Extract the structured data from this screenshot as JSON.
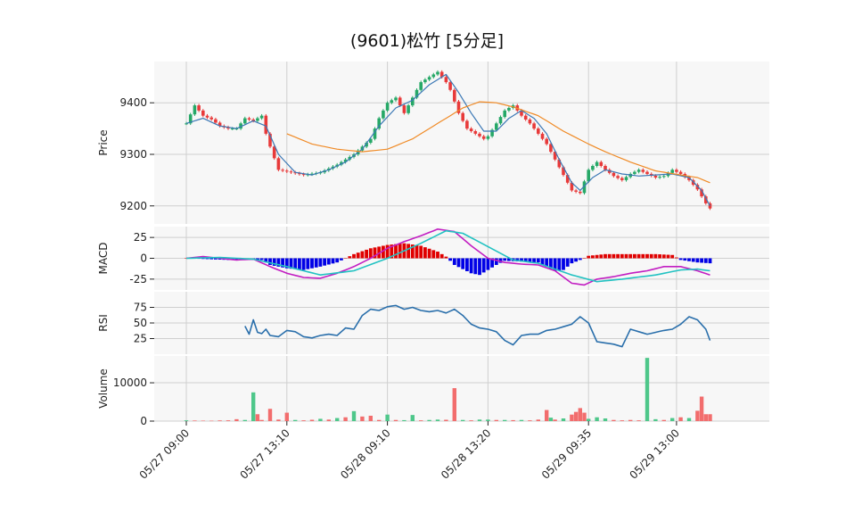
{
  "chart_data": {
    "type": "candlestick",
    "title": "(9601)松竹  [5分足]",
    "x_tick_labels": [
      "05/27  09:00",
      "05/27  13:10",
      "05/28  09:10",
      "05/28  13:20",
      "05/29  09:35",
      "05/29  13:00"
    ],
    "colors": {
      "up": "#26a867",
      "down": "#e83a3a",
      "volume_up": "#4ec78a",
      "volume_down": "#f26d6d",
      "ma_short": "#3b78b5",
      "ma_long": "#f08a25",
      "macd_line": "#c21ec2",
      "macd_signal": "#22c2c2",
      "macd_hist_pos": "#e00000",
      "macd_hist_neg": "#0000e6",
      "rsi": "#2a6fab"
    },
    "panels": [
      {
        "name": "price",
        "ylabel": "Price",
        "yticks": [
          9200,
          9300,
          9400
        ],
        "ylim": [
          9165,
          9480
        ]
      },
      {
        "name": "macd",
        "ylabel": "MACD",
        "yticks": [
          25,
          0,
          -25
        ],
        "ylim": [
          -38,
          38
        ]
      },
      {
        "name": "rsi",
        "ylabel": "RSI",
        "yticks": [
          75,
          50,
          25
        ],
        "ylim": [
          0,
          100
        ]
      },
      {
        "name": "volume",
        "ylabel": "Volume",
        "yticks": [
          10000,
          0
        ],
        "ylim": [
          0,
          17000
        ]
      }
    ],
    "close_path": [
      [
        0,
        9360
      ],
      [
        2,
        9395
      ],
      [
        4,
        9375
      ],
      [
        6,
        9368
      ],
      [
        8,
        9355
      ],
      [
        10,
        9350
      ],
      [
        12,
        9350
      ],
      [
        14,
        9370
      ],
      [
        16,
        9365
      ],
      [
        18,
        9375
      ],
      [
        19,
        9340
      ],
      [
        20,
        9315
      ],
      [
        22,
        9270
      ],
      [
        25,
        9265
      ],
      [
        28,
        9260
      ],
      [
        32,
        9265
      ],
      [
        36,
        9280
      ],
      [
        40,
        9300
      ],
      [
        44,
        9330
      ],
      [
        46,
        9370
      ],
      [
        48,
        9400
      ],
      [
        50,
        9410
      ],
      [
        52,
        9380
      ],
      [
        54,
        9410
      ],
      [
        56,
        9440
      ],
      [
        58,
        9450
      ],
      [
        60,
        9460
      ],
      [
        62,
        9440
      ],
      [
        63,
        9425
      ],
      [
        65,
        9380
      ],
      [
        67,
        9350
      ],
      [
        69,
        9340
      ],
      [
        71,
        9330
      ],
      [
        72,
        9335
      ],
      [
        74,
        9360
      ],
      [
        76,
        9385
      ],
      [
        78,
        9395
      ],
      [
        80,
        9375
      ],
      [
        82,
        9360
      ],
      [
        84,
        9340
      ],
      [
        86,
        9320
      ],
      [
        88,
        9290
      ],
      [
        90,
        9260
      ],
      [
        92,
        9230
      ],
      [
        94,
        9225
      ],
      [
        96,
        9270
      ],
      [
        98,
        9285
      ],
      [
        100,
        9270
      ],
      [
        102,
        9258
      ],
      [
        104,
        9250
      ],
      [
        106,
        9262
      ],
      [
        108,
        9270
      ],
      [
        110,
        9262
      ],
      [
        112,
        9255
      ],
      [
        114,
        9258
      ],
      [
        116,
        9270
      ],
      [
        118,
        9262
      ],
      [
        120,
        9250
      ],
      [
        122,
        9232
      ],
      [
        124,
        9205
      ],
      [
        125,
        9195
      ]
    ],
    "ma_short_path": [
      [
        0,
        9360
      ],
      [
        4,
        9370
      ],
      [
        8,
        9355
      ],
      [
        12,
        9350
      ],
      [
        16,
        9365
      ],
      [
        19,
        9355
      ],
      [
        22,
        9300
      ],
      [
        26,
        9265
      ],
      [
        30,
        9260
      ],
      [
        34,
        9270
      ],
      [
        38,
        9285
      ],
      [
        42,
        9310
      ],
      [
        46,
        9355
      ],
      [
        50,
        9390
      ],
      [
        54,
        9405
      ],
      [
        58,
        9435
      ],
      [
        62,
        9455
      ],
      [
        65,
        9420
      ],
      [
        68,
        9380
      ],
      [
        71,
        9345
      ],
      [
        74,
        9345
      ],
      [
        77,
        9370
      ],
      [
        80,
        9385
      ],
      [
        83,
        9370
      ],
      [
        86,
        9340
      ],
      [
        89,
        9290
      ],
      [
        92,
        9245
      ],
      [
        94,
        9230
      ],
      [
        97,
        9255
      ],
      [
        100,
        9270
      ],
      [
        104,
        9262
      ],
      [
        108,
        9258
      ],
      [
        112,
        9260
      ],
      [
        116,
        9262
      ],
      [
        120,
        9255
      ],
      [
        123,
        9230
      ],
      [
        125,
        9200
      ]
    ],
    "ma_long_path": [
      [
        24,
        9340
      ],
      [
        30,
        9320
      ],
      [
        36,
        9310
      ],
      [
        42,
        9305
      ],
      [
        48,
        9310
      ],
      [
        54,
        9330
      ],
      [
        58,
        9350
      ],
      [
        62,
        9370
      ],
      [
        66,
        9390
      ],
      [
        70,
        9402
      ],
      [
        74,
        9400
      ],
      [
        78,
        9392
      ],
      [
        84,
        9375
      ],
      [
        90,
        9345
      ],
      [
        96,
        9320
      ],
      [
        100,
        9305
      ],
      [
        106,
        9285
      ],
      [
        112,
        9268
      ],
      [
        118,
        9260
      ],
      [
        122,
        9255
      ],
      [
        125,
        9245
      ]
    ],
    "macd_path": [
      [
        0,
        0
      ],
      [
        4,
        2
      ],
      [
        8,
        0
      ],
      [
        12,
        -2
      ],
      [
        16,
        -1
      ],
      [
        20,
        -10
      ],
      [
        24,
        -18
      ],
      [
        28,
        -23
      ],
      [
        32,
        -24
      ],
      [
        36,
        -18
      ],
      [
        40,
        -10
      ],
      [
        44,
        0
      ],
      [
        48,
        12
      ],
      [
        52,
        20
      ],
      [
        56,
        27
      ],
      [
        60,
        35
      ],
      [
        64,
        32
      ],
      [
        68,
        15
      ],
      [
        72,
        0
      ],
      [
        76,
        -5
      ],
      [
        80,
        -7
      ],
      [
        84,
        -8
      ],
      [
        88,
        -15
      ],
      [
        92,
        -30
      ],
      [
        95,
        -32
      ],
      [
        98,
        -25
      ],
      [
        102,
        -22
      ],
      [
        106,
        -18
      ],
      [
        110,
        -15
      ],
      [
        114,
        -10
      ],
      [
        118,
        -10
      ],
      [
        122,
        -15
      ],
      [
        125,
        -20
      ]
    ],
    "signal_path": [
      [
        0,
        0
      ],
      [
        8,
        1
      ],
      [
        16,
        -1
      ],
      [
        24,
        -10
      ],
      [
        32,
        -20
      ],
      [
        40,
        -15
      ],
      [
        48,
        0
      ],
      [
        56,
        18
      ],
      [
        62,
        33
      ],
      [
        66,
        30
      ],
      [
        72,
        14
      ],
      [
        78,
        -2
      ],
      [
        84,
        -6
      ],
      [
        92,
        -20
      ],
      [
        98,
        -28
      ],
      [
        104,
        -25
      ],
      [
        112,
        -20
      ],
      [
        118,
        -14
      ],
      [
        122,
        -13
      ],
      [
        125,
        -15
      ]
    ],
    "macd_hist_path": [
      [
        0,
        0
      ],
      [
        10,
        -2
      ],
      [
        18,
        -2
      ],
      [
        20,
        -8
      ],
      [
        24,
        -12
      ],
      [
        28,
        -14
      ],
      [
        32,
        -10
      ],
      [
        36,
        -5
      ],
      [
        40,
        5
      ],
      [
        44,
        12
      ],
      [
        48,
        16
      ],
      [
        52,
        18
      ],
      [
        56,
        15
      ],
      [
        60,
        8
      ],
      [
        62,
        2
      ],
      [
        64,
        -8
      ],
      [
        68,
        -18
      ],
      [
        70,
        -20
      ],
      [
        72,
        -14
      ],
      [
        74,
        -8
      ],
      [
        76,
        -3
      ],
      [
        80,
        -4
      ],
      [
        84,
        -5
      ],
      [
        86,
        -10
      ],
      [
        88,
        -15
      ],
      [
        90,
        -14
      ],
      [
        92,
        -6
      ],
      [
        94,
        -2
      ],
      [
        96,
        3
      ],
      [
        100,
        5
      ],
      [
        104,
        5
      ],
      [
        108,
        5
      ],
      [
        112,
        5
      ],
      [
        116,
        4
      ],
      [
        118,
        -2
      ],
      [
        122,
        -5
      ],
      [
        125,
        -6
      ]
    ],
    "rsi_path": [
      [
        14,
        45
      ],
      [
        15,
        32
      ],
      [
        16,
        55
      ],
      [
        17,
        35
      ],
      [
        18,
        33
      ],
      [
        19,
        40
      ],
      [
        20,
        30
      ],
      [
        22,
        28
      ],
      [
        24,
        38
      ],
      [
        26,
        36
      ],
      [
        28,
        28
      ],
      [
        30,
        26
      ],
      [
        32,
        30
      ],
      [
        34,
        32
      ],
      [
        36,
        30
      ],
      [
        38,
        42
      ],
      [
        40,
        40
      ],
      [
        42,
        62
      ],
      [
        44,
        72
      ],
      [
        46,
        70
      ],
      [
        48,
        76
      ],
      [
        50,
        78
      ],
      [
        52,
        72
      ],
      [
        54,
        75
      ],
      [
        56,
        70
      ],
      [
        58,
        68
      ],
      [
        60,
        70
      ],
      [
        62,
        66
      ],
      [
        64,
        72
      ],
      [
        66,
        62
      ],
      [
        68,
        48
      ],
      [
        70,
        42
      ],
      [
        72,
        40
      ],
      [
        74,
        36
      ],
      [
        76,
        22
      ],
      [
        78,
        15
      ],
      [
        80,
        30
      ],
      [
        82,
        32
      ],
      [
        84,
        32
      ],
      [
        86,
        38
      ],
      [
        88,
        40
      ],
      [
        90,
        44
      ],
      [
        92,
        48
      ],
      [
        94,
        60
      ],
      [
        96,
        50
      ],
      [
        98,
        20
      ],
      [
        100,
        18
      ],
      [
        102,
        16
      ],
      [
        104,
        12
      ],
      [
        106,
        40
      ],
      [
        108,
        36
      ],
      [
        110,
        32
      ],
      [
        112,
        35
      ],
      [
        114,
        38
      ],
      [
        116,
        40
      ],
      [
        118,
        48
      ],
      [
        120,
        60
      ],
      [
        122,
        55
      ],
      [
        124,
        40
      ],
      [
        125,
        22
      ]
    ],
    "volume_bars": [
      [
        0,
        200,
        1
      ],
      [
        2,
        150,
        0
      ],
      [
        4,
        120,
        0
      ],
      [
        6,
        100,
        0
      ],
      [
        8,
        180,
        0
      ],
      [
        10,
        200,
        0
      ],
      [
        12,
        500,
        0
      ],
      [
        14,
        300,
        1
      ],
      [
        16,
        7500,
        1
      ],
      [
        17,
        1800,
        0
      ],
      [
        18,
        300,
        0
      ],
      [
        20,
        3200,
        0
      ],
      [
        22,
        400,
        0
      ],
      [
        24,
        2200,
        0
      ],
      [
        26,
        300,
        1
      ],
      [
        28,
        200,
        0
      ],
      [
        30,
        350,
        0
      ],
      [
        32,
        600,
        1
      ],
      [
        34,
        400,
        0
      ],
      [
        36,
        800,
        1
      ],
      [
        38,
        1000,
        0
      ],
      [
        40,
        2600,
        1
      ],
      [
        42,
        1200,
        0
      ],
      [
        44,
        1400,
        0
      ],
      [
        46,
        300,
        0
      ],
      [
        48,
        1700,
        1
      ],
      [
        50,
        300,
        0
      ],
      [
        52,
        250,
        1
      ],
      [
        54,
        1600,
        1
      ],
      [
        56,
        200,
        0
      ],
      [
        58,
        300,
        1
      ],
      [
        60,
        400,
        1
      ],
      [
        62,
        350,
        0
      ],
      [
        64,
        8600,
        0
      ],
      [
        66,
        300,
        1
      ],
      [
        68,
        200,
        0
      ],
      [
        70,
        400,
        1
      ],
      [
        72,
        400,
        1
      ],
      [
        74,
        300,
        0
      ],
      [
        76,
        300,
        1
      ],
      [
        78,
        250,
        0
      ],
      [
        80,
        300,
        1
      ],
      [
        82,
        200,
        0
      ],
      [
        84,
        400,
        0
      ],
      [
        86,
        2900,
        0
      ],
      [
        87,
        900,
        1
      ],
      [
        88,
        400,
        0
      ],
      [
        90,
        700,
        1
      ],
      [
        92,
        1700,
        0
      ],
      [
        93,
        2400,
        0
      ],
      [
        94,
        3400,
        0
      ],
      [
        95,
        2200,
        0
      ],
      [
        96,
        600,
        1
      ],
      [
        98,
        1000,
        1
      ],
      [
        100,
        700,
        1
      ],
      [
        102,
        300,
        0
      ],
      [
        104,
        200,
        0
      ],
      [
        106,
        300,
        0
      ],
      [
        108,
        200,
        0
      ],
      [
        110,
        16500,
        1
      ],
      [
        112,
        500,
        1
      ],
      [
        114,
        300,
        0
      ],
      [
        116,
        800,
        1
      ],
      [
        118,
        1000,
        0
      ],
      [
        120,
        800,
        1
      ],
      [
        122,
        2700,
        0
      ],
      [
        123,
        6400,
        0
      ],
      [
        124,
        1800,
        0
      ],
      [
        125,
        1800,
        0
      ]
    ]
  }
}
